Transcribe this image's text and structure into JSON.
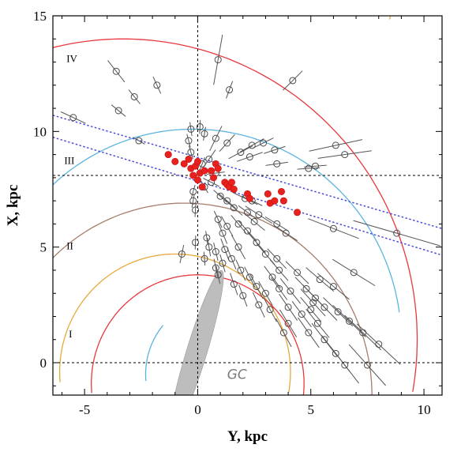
{
  "chart_data": {
    "type": "scatter",
    "xlabel": "Y, kpc",
    "ylabel": "X, kpc",
    "xlim": [
      -6.4,
      10.8
    ],
    "ylim": [
      -1.4,
      15
    ],
    "xticks": [
      -5,
      0,
      5,
      10
    ],
    "yticks": [
      0,
      5,
      10,
      15
    ],
    "grid": false,
    "dashed_lines": {
      "y_equals": [
        0,
        8.1
      ],
      "x_equals": [
        0
      ]
    },
    "arm_labels": [
      {
        "text": "IV",
        "x": -5.8,
        "y": 13
      },
      {
        "text": "III",
        "x": -5.9,
        "y": 8.6
      },
      {
        "text": "II",
        "x": -5.8,
        "y": 4.9
      },
      {
        "text": "I",
        "x": -5.7,
        "y": 1.1
      }
    ],
    "gc_label": {
      "text": "GC",
      "x": 1.3,
      "y": -0.7
    },
    "colors": {
      "red": "#e8383d",
      "blue": "#5ab4e0",
      "orange": "#e8a93a",
      "brown": "#a67c6a",
      "gray_fill": "#bdbdbd",
      "dash_blue": "#4d4dd9",
      "open_marker": "#4a4a4a",
      "filled_marker": "#e8201e"
    },
    "arcs": [
      {
        "color": "red",
        "cx": -3.3,
        "cy": 1.0,
        "r": 13.0,
        "t1": -10,
        "t2": 170
      },
      {
        "color": "blue",
        "cx": -0.2,
        "cy": 0.9,
        "r": 9.2,
        "t1": 8,
        "t2": 175
      },
      {
        "color": "brown",
        "cx": -0.6,
        "cy": -1.4,
        "r": 8.3,
        "t1": -13,
        "t2": 148
      },
      {
        "color": "orange",
        "cx": 13.5,
        "cy": 13.5,
        "r": 5.2,
        "t1": 90,
        "t2": 165
      },
      {
        "color": "orange",
        "cx": -1.0,
        "cy": -0.4,
        "r": 5.1,
        "t1": -10,
        "t2": 185
      },
      {
        "color": "red",
        "cx": 0.0,
        "cy": -0.9,
        "r": 4.7,
        "t1": -10,
        "t2": 185
      },
      {
        "color": "blue",
        "cx": 1.0,
        "cy": -0.5,
        "r": 3.3,
        "t1": 140,
        "t2": 185
      }
    ],
    "gc_ellipse": {
      "cx": -0.05,
      "cy": 0.45,
      "rx": 0.45,
      "ry": 3.7,
      "tilt_deg": 17
    },
    "bands": [
      {
        "x1": -6.4,
        "y1": 10.7,
        "x2": 10.8,
        "y2": 5.8
      },
      {
        "x1": -6.4,
        "y1": 9.75,
        "x2": 10.8,
        "y2": 4.65
      }
    ],
    "series": [
      {
        "marker": "open",
        "points": [
          [
            -3.6,
            12.6,
            0.6
          ],
          [
            -1.8,
            12.0,
            0.4
          ],
          [
            -2.8,
            11.5,
            0.4
          ],
          [
            1.4,
            11.8,
            0.4
          ],
          [
            0.9,
            13.1,
            1.1
          ],
          [
            4.2,
            12.2,
            0.6
          ],
          [
            -3.5,
            10.9,
            0.4
          ],
          [
            -5.5,
            10.6,
            0.6
          ],
          [
            -2.6,
            9.6,
            0.3
          ],
          [
            -0.3,
            10.1,
            0.3
          ],
          [
            0.3,
            9.9,
            0.3
          ],
          [
            0.1,
            10.2,
            0.3
          ],
          [
            0.8,
            9.7,
            0.6
          ],
          [
            1.3,
            9.5,
            0.5
          ],
          [
            2.4,
            9.4,
            0.6
          ],
          [
            2.9,
            9.5,
            0.5
          ],
          [
            1.9,
            9.1,
            0.6
          ],
          [
            2.3,
            8.9,
            0.6
          ],
          [
            3.4,
            9.2,
            0.5
          ],
          [
            3.5,
            8.6,
            0.5
          ],
          [
            -0.4,
            9.6,
            0.3
          ],
          [
            -0.3,
            9.1,
            0.3
          ],
          [
            0.5,
            8.8,
            0.5
          ],
          [
            4.9,
            8.4,
            0.5
          ],
          [
            5.2,
            8.5,
            0.5
          ],
          [
            6.1,
            9.4,
            1.2
          ],
          [
            6.5,
            9.0,
            1.2
          ],
          [
            0.2,
            8.6,
            0.3
          ],
          [
            0.8,
            8.2,
            0.4
          ],
          [
            0.6,
            7.8,
            0.4
          ],
          [
            0.3,
            7.6,
            0.3
          ],
          [
            1.0,
            7.2,
            0.4
          ],
          [
            1.3,
            7.0,
            0.5
          ],
          [
            1.6,
            6.7,
            0.5
          ],
          [
            2.1,
            7.1,
            0.6
          ],
          [
            2.4,
            7.0,
            0.5
          ],
          [
            2.7,
            6.4,
            0.7
          ],
          [
            -0.2,
            7.4,
            0.3
          ],
          [
            -0.2,
            7.0,
            0.3
          ],
          [
            -0.1,
            6.6,
            0.3
          ],
          [
            0.9,
            6.2,
            0.4
          ],
          [
            1.3,
            5.9,
            0.5
          ],
          [
            1.8,
            6.0,
            0.5
          ],
          [
            2.2,
            5.7,
            0.6
          ],
          [
            3.5,
            6.0,
            0.6
          ],
          [
            3.9,
            5.6,
            0.6
          ],
          [
            6.0,
            5.8,
            1.2
          ],
          [
            8.8,
            5.6,
            2.0
          ],
          [
            -0.1,
            5.2,
            0.3
          ],
          [
            0.4,
            5.4,
            0.3
          ],
          [
            0.5,
            5.0,
            0.4
          ],
          [
            0.8,
            4.8,
            0.4
          ],
          [
            1.2,
            4.9,
            0.5
          ],
          [
            1.8,
            5.0,
            0.6
          ],
          [
            2.6,
            5.2,
            0.6
          ],
          [
            3.0,
            4.7,
            0.6
          ],
          [
            3.5,
            4.5,
            0.6
          ],
          [
            3.6,
            4.0,
            0.6
          ],
          [
            4.4,
            3.9,
            0.7
          ],
          [
            5.4,
            3.6,
            0.8
          ],
          [
            -0.7,
            4.7,
            0.4
          ],
          [
            0.3,
            4.5,
            0.3
          ],
          [
            0.8,
            4.1,
            0.4
          ],
          [
            1.1,
            4.3,
            0.4
          ],
          [
            1.5,
            4.5,
            0.5
          ],
          [
            1.9,
            4.0,
            0.5
          ],
          [
            2.3,
            3.7,
            0.5
          ],
          [
            2.6,
            3.3,
            0.6
          ],
          [
            3.0,
            3.0,
            0.6
          ],
          [
            3.3,
            3.7,
            0.6
          ],
          [
            3.6,
            3.2,
            0.6
          ],
          [
            4.1,
            3.1,
            0.7
          ],
          [
            4.8,
            3.2,
            0.7
          ],
          [
            5.2,
            2.8,
            0.8
          ],
          [
            6.0,
            3.3,
            0.9
          ],
          [
            6.9,
            3.9,
            1.1
          ],
          [
            0.9,
            3.8,
            0.4
          ],
          [
            1.6,
            3.4,
            0.5
          ],
          [
            2.0,
            2.9,
            0.5
          ],
          [
            2.7,
            2.5,
            0.6
          ],
          [
            3.2,
            2.3,
            0.6
          ],
          [
            4.0,
            2.4,
            0.7
          ],
          [
            4.6,
            2.1,
            0.7
          ],
          [
            5.1,
            2.6,
            0.8
          ],
          [
            5.6,
            2.4,
            0.8
          ],
          [
            6.2,
            2.2,
            0.9
          ],
          [
            6.7,
            1.8,
            1.0
          ],
          [
            7.3,
            1.3,
            1.1
          ],
          [
            8.0,
            0.8,
            1.3
          ],
          [
            5.0,
            2.3,
            0.7
          ],
          [
            5.3,
            1.7,
            0.8
          ],
          [
            4.0,
            1.7,
            0.7
          ],
          [
            4.9,
            1.3,
            0.8
          ],
          [
            5.6,
            1.0,
            0.9
          ],
          [
            6.1,
            0.4,
            1.0
          ],
          [
            6.5,
            -0.1,
            1.0
          ],
          [
            7.5,
            -0.1,
            1.2
          ],
          [
            3.8,
            1.3,
            0.7
          ],
          [
            2.2,
            6.5,
            0.5
          ],
          [
            2.5,
            6.1,
            0.6
          ],
          [
            1.1,
            5.6,
            0.5
          ]
        ]
      },
      {
        "marker": "filled",
        "points": [
          [
            -1.3,
            9.0
          ],
          [
            -1.0,
            8.7
          ],
          [
            -0.6,
            8.6
          ],
          [
            -0.4,
            8.8
          ],
          [
            -0.3,
            8.4
          ],
          [
            -0.1,
            8.5
          ],
          [
            0.0,
            8.7
          ],
          [
            0.1,
            8.2
          ],
          [
            -0.2,
            8.1
          ],
          [
            0.0,
            7.9
          ],
          [
            0.2,
            7.6
          ],
          [
            0.3,
            8.3
          ],
          [
            0.6,
            8.3
          ],
          [
            0.7,
            8.0
          ],
          [
            0.8,
            8.6
          ],
          [
            0.9,
            8.4
          ],
          [
            1.2,
            7.8
          ],
          [
            1.3,
            7.7
          ],
          [
            1.4,
            7.6
          ],
          [
            1.5,
            7.8
          ],
          [
            1.6,
            7.5
          ],
          [
            2.2,
            7.3
          ],
          [
            2.3,
            7.1
          ],
          [
            3.1,
            7.3
          ],
          [
            3.2,
            6.9
          ],
          [
            3.4,
            7.0
          ],
          [
            3.7,
            7.4
          ],
          [
            3.8,
            7.0
          ],
          [
            4.4,
            6.5
          ]
        ]
      }
    ]
  }
}
